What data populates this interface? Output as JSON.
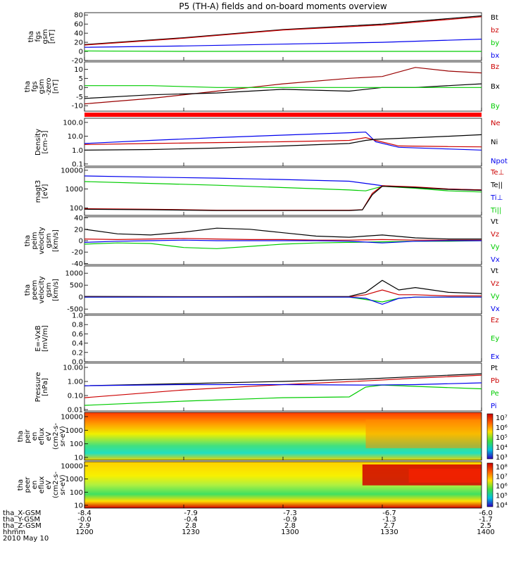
{
  "title": "P5 (TH-A) fields and on-board moments overview",
  "chart_data": [
    {
      "type": "line",
      "ylabel": [
        "tha",
        "fgs",
        "gsm",
        "[nT]"
      ],
      "yticks": [
        "80",
        "60",
        "40",
        "20",
        "0",
        "-20"
      ],
      "ylim": [
        -20,
        85
      ],
      "legend": [
        {
          "name": "Bt",
          "color": "#000000"
        },
        {
          "name": "bz",
          "color": "#cc0000"
        },
        {
          "name": "by",
          "color": "#00cc00"
        },
        {
          "name": "bx",
          "color": "#0000ee"
        }
      ],
      "series": [
        {
          "name": "Bt",
          "color": "#000000",
          "x": [
            0,
            30,
            60,
            90,
            120
          ],
          "y": [
            15,
            30,
            48,
            60,
            78
          ]
        },
        {
          "name": "bz",
          "color": "#cc0000",
          "x": [
            0,
            30,
            60,
            90,
            120
          ],
          "y": [
            14,
            29,
            47,
            58,
            76
          ]
        },
        {
          "name": "by",
          "color": "#00cc00",
          "x": [
            0,
            30,
            60,
            90,
            120
          ],
          "y": [
            1,
            0,
            0,
            0,
            0
          ]
        },
        {
          "name": "bx",
          "color": "#0000ee",
          "x": [
            0,
            30,
            60,
            90,
            120
          ],
          "y": [
            9,
            12,
            16,
            20,
            27
          ]
        }
      ]
    },
    {
      "type": "line",
      "ylabel": [
        "tha",
        "fgs",
        "gsm",
        "-zero",
        "[nT]"
      ],
      "yticks": [
        "10",
        "5",
        "0",
        "-5",
        "-10"
      ],
      "ylim": [
        -13,
        14
      ],
      "legend": [
        {
          "name": "Bz",
          "color": "#cc0000"
        },
        {
          "name": "Bx",
          "color": "#000000"
        },
        {
          "name": "By",
          "color": "#00cc00"
        }
      ],
      "series": [
        {
          "name": "Bz",
          "color": "#990000",
          "x": [
            0,
            20,
            40,
            60,
            80,
            90,
            100,
            110,
            120
          ],
          "y": [
            -9,
            -6,
            -2,
            2,
            5,
            6,
            11,
            9,
            8
          ]
        },
        {
          "name": "Bx",
          "color": "#000000",
          "x": [
            0,
            20,
            40,
            60,
            80,
            90,
            100,
            110,
            120
          ],
          "y": [
            -6,
            -4,
            -3,
            -1,
            -2,
            0,
            0,
            1,
            2
          ]
        },
        {
          "name": "By",
          "color": "#00cc00",
          "x": [
            0,
            20,
            40,
            60,
            80,
            90,
            100,
            110,
            120
          ],
          "y": [
            1,
            1,
            0,
            0,
            0,
            0,
            0,
            0,
            0
          ]
        }
      ]
    },
    {
      "type": "line",
      "scale": "log",
      "ylabel": [
        "Density",
        "[cm-3]"
      ],
      "yticks": [
        "100.0",
        "10.0",
        "1.0",
        "0.1"
      ],
      "ylim": [
        0.07,
        200
      ],
      "legend": [
        {
          "name": "Ne",
          "color": "#cc0000"
        },
        {
          "name": "Ni",
          "color": "#000000"
        },
        {
          "name": "Npot",
          "color": "#0000ee"
        }
      ],
      "series": [
        {
          "name": "Npot",
          "color": "#0000ee",
          "x": [
            0,
            20,
            40,
            60,
            80,
            85,
            88,
            95,
            110,
            120
          ],
          "y": [
            3,
            5,
            8,
            12,
            18,
            20,
            4,
            1.6,
            1.2,
            1.0
          ]
        },
        {
          "name": "Ne",
          "color": "#cc0000",
          "x": [
            0,
            20,
            40,
            60,
            80,
            85,
            88,
            95,
            110,
            120
          ],
          "y": [
            2.5,
            3,
            3.5,
            4,
            5,
            8,
            5,
            2,
            1.8,
            1.7
          ]
        },
        {
          "name": "Ni",
          "color": "#000000",
          "x": [
            0,
            20,
            40,
            60,
            80,
            85,
            88,
            95,
            110,
            120
          ],
          "y": [
            1.0,
            1.1,
            1.4,
            2,
            3,
            5,
            6,
            7,
            10,
            13
          ]
        }
      ]
    },
    {
      "type": "line",
      "scale": "log",
      "ylabel": [
        "magt3",
        "[eV]"
      ],
      "yticks": [
        "10000",
        "1000",
        "100"
      ],
      "ylim": [
        40,
        14000
      ],
      "legend": [
        {
          "name": "Te⊥",
          "color": "#cc0000"
        },
        {
          "name": "Te||",
          "color": "#000000"
        },
        {
          "name": "Ti⊥",
          "color": "#0000ee"
        },
        {
          "name": "Ti||",
          "color": "#00cc00"
        }
      ],
      "series": [
        {
          "name": "Ti⊥",
          "color": "#0000ee",
          "x": [
            0,
            20,
            40,
            60,
            80,
            85,
            90,
            100,
            110,
            120
          ],
          "y": [
            5000,
            4300,
            3800,
            3200,
            2600,
            2000,
            1500,
            1200,
            1000,
            900
          ]
        },
        {
          "name": "Ti||",
          "color": "#00cc00",
          "x": [
            0,
            20,
            40,
            60,
            80,
            85,
            90,
            100,
            110,
            120
          ],
          "y": [
            2500,
            2000,
            1600,
            1200,
            900,
            800,
            1400,
            1100,
            800,
            700
          ]
        },
        {
          "name": "Te⊥",
          "color": "#cc0000",
          "x": [
            0,
            20,
            40,
            60,
            80,
            84,
            87,
            90,
            100,
            110,
            120
          ],
          "y": [
            90,
            85,
            75,
            75,
            75,
            80,
            600,
            1500,
            1300,
            1000,
            900
          ]
        },
        {
          "name": "Te||",
          "color": "#000000",
          "x": [
            0,
            20,
            40,
            60,
            80,
            84,
            87,
            90,
            100,
            110,
            120
          ],
          "y": [
            85,
            80,
            72,
            72,
            72,
            78,
            500,
            1400,
            1200,
            950,
            850
          ]
        }
      ]
    },
    {
      "type": "line",
      "ylabel": [
        "tha",
        "peim",
        "velocity",
        "gsm",
        "[km/s]"
      ],
      "yticks": [
        "40",
        "20",
        "0",
        "-20",
        "-40"
      ],
      "ylim": [
        -42,
        42
      ],
      "legend": [
        {
          "name": "Vt",
          "color": "#000000"
        },
        {
          "name": "Vz",
          "color": "#cc0000"
        },
        {
          "name": "Vy",
          "color": "#00cc00"
        },
        {
          "name": "Vx",
          "color": "#0000ee"
        }
      ],
      "series": [
        {
          "name": "Vt",
          "color": "#000000",
          "x": [
            0,
            10,
            20,
            30,
            40,
            50,
            60,
            70,
            80,
            90,
            100,
            110,
            120
          ],
          "y": [
            20,
            12,
            10,
            15,
            22,
            20,
            14,
            8,
            6,
            10,
            5,
            3,
            3
          ]
        },
        {
          "name": "Vy",
          "color": "#00cc00",
          "x": [
            0,
            10,
            20,
            30,
            40,
            50,
            60,
            70,
            80,
            90,
            100,
            110,
            120
          ],
          "y": [
            -6,
            -4,
            -5,
            -12,
            -14,
            -10,
            -6,
            -4,
            -3,
            -2,
            -1,
            -1,
            0
          ]
        },
        {
          "name": "Vz",
          "color": "#cc0000",
          "x": [
            0,
            10,
            20,
            30,
            40,
            50,
            60,
            70,
            80,
            90,
            100,
            110,
            120
          ],
          "y": [
            3,
            2,
            3,
            4,
            3,
            2,
            2,
            1,
            1,
            2,
            1,
            1,
            1
          ]
        },
        {
          "name": "Vx",
          "color": "#0000ee",
          "x": [
            0,
            10,
            20,
            30,
            40,
            50,
            60,
            70,
            80,
            90,
            100,
            110,
            120
          ],
          "y": [
            -3,
            -1,
            0,
            1,
            0,
            0,
            0,
            0,
            -1,
            -4,
            -1,
            0,
            0
          ]
        }
      ]
    },
    {
      "type": "line",
      "ylabel": [
        "tha",
        "peem",
        "velocity",
        "gsm",
        "[km/s]"
      ],
      "yticks": [
        "1000",
        "500",
        "0",
        "-500"
      ],
      "ylim": [
        -700,
        1300
      ],
      "legend": [
        {
          "name": "Vt",
          "color": "#000000"
        },
        {
          "name": "Vz",
          "color": "#cc0000"
        },
        {
          "name": "Vy",
          "color": "#00cc00"
        },
        {
          "name": "Vx",
          "color": "#0000ee"
        }
      ],
      "series": [
        {
          "name": "Vt",
          "color": "#000000",
          "x": [
            0,
            40,
            80,
            85,
            90,
            95,
            100,
            110,
            120
          ],
          "y": [
            30,
            20,
            30,
            200,
            700,
            300,
            400,
            200,
            150
          ]
        },
        {
          "name": "Vz",
          "color": "#cc0000",
          "x": [
            0,
            40,
            80,
            85,
            90,
            95,
            100,
            110,
            120
          ],
          "y": [
            10,
            10,
            10,
            100,
            300,
            100,
            100,
            50,
            50
          ]
        },
        {
          "name": "Vy",
          "color": "#00cc00",
          "x": [
            0,
            40,
            80,
            85,
            90,
            95,
            100,
            110,
            120
          ],
          "y": [
            0,
            0,
            0,
            -100,
            -200,
            -50,
            0,
            0,
            0
          ]
        },
        {
          "name": "Vx",
          "color": "#0000ee",
          "x": [
            0,
            40,
            80,
            85,
            90,
            95,
            100,
            110,
            120
          ],
          "y": [
            0,
            0,
            0,
            -50,
            -300,
            -50,
            0,
            0,
            0
          ]
        }
      ]
    },
    {
      "type": "line",
      "ylabel": [
        "E=-VxB",
        "[mV/m]"
      ],
      "yticks": [
        "1.0",
        "0.8",
        "0.6",
        "0.4",
        "0.2",
        "0.0"
      ],
      "ylim": [
        0,
        1
      ],
      "legend": [
        {
          "name": "Ez",
          "color": "#cc0000"
        },
        {
          "name": "Ey",
          "color": "#00cc00"
        },
        {
          "name": "Ex",
          "color": "#0000ee"
        }
      ],
      "series": []
    },
    {
      "type": "line",
      "scale": "log",
      "ylabel": [
        "Pressure",
        "[nPa]"
      ],
      "yticks": [
        "10.00",
        "1.00",
        "0.10",
        "0.01"
      ],
      "ylim": [
        0.008,
        20
      ],
      "legend": [
        {
          "name": "Pt",
          "color": "#000000"
        },
        {
          "name": "Pb",
          "color": "#cc0000"
        },
        {
          "name": "Pe",
          "color": "#00cc00"
        },
        {
          "name": "Pi",
          "color": "#0000ee"
        }
      ],
      "series": [
        {
          "name": "Pt",
          "color": "#000000",
          "x": [
            0,
            30,
            60,
            85,
            100,
            120
          ],
          "y": [
            0.5,
            0.7,
            1.0,
            1.5,
            2.2,
            3.5
          ]
        },
        {
          "name": "Pb",
          "color": "#cc0000",
          "x": [
            0,
            30,
            60,
            85,
            100,
            120
          ],
          "y": [
            0.07,
            0.25,
            0.6,
            1.1,
            1.7,
            2.8
          ]
        },
        {
          "name": "Pe",
          "color": "#00cc00",
          "x": [
            0,
            30,
            60,
            80,
            85,
            90,
            100,
            120
          ],
          "y": [
            0.02,
            0.04,
            0.07,
            0.08,
            0.4,
            0.55,
            0.45,
            0.3
          ]
        },
        {
          "name": "Pi",
          "color": "#0000ee",
          "x": [
            0,
            30,
            60,
            85,
            100,
            120
          ],
          "y": [
            0.5,
            0.6,
            0.6,
            0.55,
            0.6,
            0.8
          ]
        }
      ]
    },
    {
      "type": "heatmap",
      "ylabel": [
        "tha",
        "peir",
        "en",
        "eflux",
        "eV",
        "(cm2-s-",
        "sr-eV)"
      ],
      "yticks": [
        "10000",
        "1000",
        "100",
        "10"
      ],
      "colorbar": [
        "10⁷",
        "10⁶",
        "10⁵",
        "10⁴",
        "10³"
      ]
    },
    {
      "type": "heatmap",
      "ylabel": [
        "tha",
        "peer",
        "en",
        "eflux",
        "eV",
        "(cm2-s-",
        "sr-eV)"
      ],
      "yticks": [
        "10000",
        "1000",
        "100",
        "10"
      ],
      "colorbar": [
        "10⁸",
        "10⁷",
        "10⁶",
        "10⁵",
        "10⁴"
      ]
    }
  ],
  "footer": {
    "rows": [
      {
        "label": "tha_X-GSM",
        "values": [
          "-8.4",
          "-7.9",
          "-7.3",
          "-6.7",
          "-6.0"
        ]
      },
      {
        "label": "tha_Y-GSM",
        "values": [
          "-0.0",
          "-0.4",
          "-0.9",
          "-1.3",
          "-1.7"
        ]
      },
      {
        "label": "tha_Z-GSM",
        "values": [
          "2.9",
          "2.8",
          "2.8",
          "2.7",
          "2.5"
        ]
      },
      {
        "label": "hhmm",
        "values": [
          "1200",
          "1230",
          "1300",
          "1330",
          "1400"
        ]
      }
    ],
    "date": "2010 May 10"
  }
}
